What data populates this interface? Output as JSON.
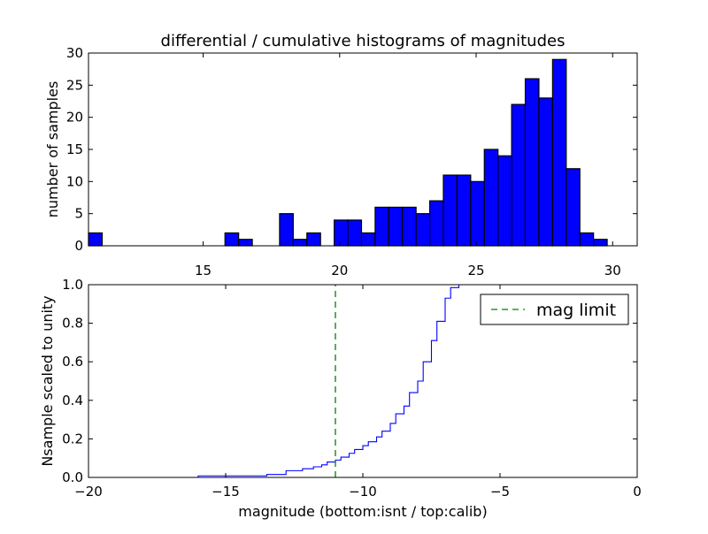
{
  "chart_data": [
    {
      "type": "bar",
      "title": "differential / cumulative histograms of magnitudes",
      "xlabel": "",
      "ylabel": "number of samples",
      "xlim": [
        10.8,
        30.9
      ],
      "ylim": [
        0,
        30
      ],
      "xticks": [
        15,
        20,
        25,
        30
      ],
      "yticks": [
        0,
        5,
        10,
        15,
        20,
        25,
        30
      ],
      "bin_edges": [
        10.8,
        11.3,
        11.8,
        12.3,
        12.8,
        13.3,
        13.8,
        14.3,
        14.8,
        15.3,
        15.8,
        16.3,
        16.8,
        17.3,
        17.8,
        18.3,
        18.8,
        19.3,
        19.8,
        20.3,
        20.8,
        21.3,
        21.8,
        22.3,
        22.8,
        23.3,
        23.8,
        24.3,
        24.8,
        25.3,
        25.8,
        26.3,
        26.8,
        27.3,
        27.8,
        28.3,
        28.8,
        29.3,
        29.8
      ],
      "values": [
        2,
        0,
        0,
        0,
        0,
        0,
        0,
        0,
        0,
        0,
        2,
        1,
        0,
        0,
        5,
        1,
        2,
        0,
        4,
        4,
        2,
        6,
        6,
        6,
        5,
        7,
        11,
        11,
        10,
        15,
        14,
        22,
        26,
        23,
        29,
        12,
        2,
        1
      ],
      "color": "#0000ff",
      "edge_color": "#000000"
    },
    {
      "type": "line",
      "title": "",
      "xlabel": "magnitude (bottom:isnt / top:calib)",
      "ylabel": "Nsample scaled to unity",
      "xlim": [
        -20,
        0
      ],
      "ylim": [
        0,
        1.0
      ],
      "xticks": [
        -20,
        -15,
        -10,
        -5,
        0
      ],
      "yticks": [
        0.0,
        0.2,
        0.4,
        0.6,
        0.8,
        1.0
      ],
      "series": [
        {
          "name": "",
          "step": true,
          "color": "#0000ff",
          "x": [
            -20,
            -16.0,
            -13.5,
            -12.8,
            -12.2,
            -11.8,
            -11.5,
            -11.3,
            -11.0,
            -10.8,
            -10.5,
            -10.3,
            -10.0,
            -9.8,
            -9.5,
            -9.3,
            -9.0,
            -8.8,
            -8.5,
            -8.3,
            -8.0,
            -7.8,
            -7.5,
            -7.3,
            -7.0,
            -6.8,
            -6.5,
            0
          ],
          "y": [
            0.0,
            0.008,
            0.015,
            0.035,
            0.045,
            0.055,
            0.065,
            0.08,
            0.09,
            0.105,
            0.125,
            0.145,
            0.165,
            0.185,
            0.21,
            0.24,
            0.28,
            0.33,
            0.37,
            0.44,
            0.5,
            0.6,
            0.71,
            0.81,
            0.93,
            0.985,
            1.0,
            1.0
          ]
        },
        {
          "name": "mag limit",
          "dashed": true,
          "color": "#008000",
          "x": [
            -11,
            -11
          ],
          "y": [
            0,
            1
          ]
        }
      ],
      "legend": {
        "placement": "top-right",
        "entries": [
          "mag limit"
        ]
      }
    }
  ]
}
